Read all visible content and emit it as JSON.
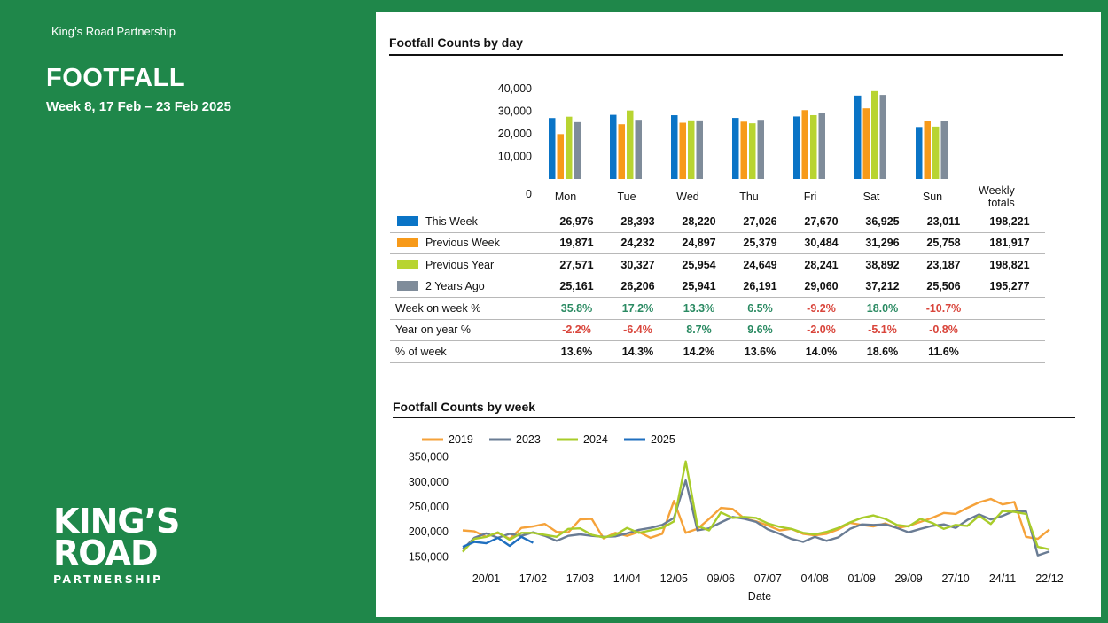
{
  "header": {
    "org": "King’s Road Partnership",
    "title": "FOOTFALL",
    "subtitle": "Week 8, 17 Feb – 23 Feb 2025"
  },
  "logo": {
    "line1": "KING’S",
    "line2": "ROAD",
    "line3": "PARTNERSHIP"
  },
  "colors": {
    "background": "#1f874a",
    "this_week": "#0a74c6",
    "previous_week": "#f79a1a",
    "previous_year": "#b8d431",
    "two_years_ago": "#7f8c9a"
  },
  "day_section": {
    "title": "Footfall Counts by day",
    "weekly_totals_label": [
      "Weekly",
      "totals"
    ]
  },
  "week_section": {
    "title": "Footfall Counts by week"
  },
  "chart_data": [
    {
      "type": "bar",
      "title": "Footfall Counts by day",
      "categories": [
        "Mon",
        "Tue",
        "Wed",
        "Thu",
        "Fri",
        "Sat",
        "Sun"
      ],
      "y_ticks": [
        "0",
        "10,000",
        "20,000",
        "30,000",
        "40,000"
      ],
      "ylim": [
        0,
        40000
      ],
      "series": [
        {
          "name": "This Week",
          "color": "#0a74c6",
          "values": [
            26976,
            28393,
            28220,
            27026,
            27670,
            36925,
            23011
          ],
          "labels": [
            "26,976",
            "28,393",
            "28,220",
            "27,026",
            "27,670",
            "36,925",
            "23,011"
          ],
          "total": "198,221"
        },
        {
          "name": "Previous Week",
          "color": "#f79a1a",
          "values": [
            19871,
            24232,
            24897,
            25379,
            30484,
            31296,
            25758
          ],
          "labels": [
            "19,871",
            "24,232",
            "24,897",
            "25,379",
            "30,484",
            "31,296",
            "25,758"
          ],
          "total": "181,917"
        },
        {
          "name": "Previous Year",
          "color": "#b8d431",
          "values": [
            27571,
            30327,
            25954,
            24649,
            28241,
            38892,
            23187
          ],
          "labels": [
            "27,571",
            "30,327",
            "25,954",
            "24,649",
            "28,241",
            "38,892",
            "23,187"
          ],
          "total": "198,821"
        },
        {
          "name": "2 Years Ago",
          "color": "#7f8c9a",
          "values": [
            25161,
            26206,
            25941,
            26191,
            29060,
            37212,
            25506
          ],
          "labels": [
            "25,161",
            "26,206",
            "25,941",
            "26,191",
            "29,060",
            "37,212",
            "25,506"
          ],
          "total": "195,277"
        }
      ],
      "metrics": [
        {
          "name": "Week on week %",
          "values": [
            "35.8%",
            "17.2%",
            "13.3%",
            "6.5%",
            "-9.2%",
            "18.0%",
            "-10.7%"
          ]
        },
        {
          "name": "Year on year %",
          "values": [
            "-2.2%",
            "-6.4%",
            "8.7%",
            "9.6%",
            "-2.0%",
            "-5.1%",
            "-0.8%"
          ]
        },
        {
          "name": "% of week",
          "values": [
            "13.6%",
            "14.3%",
            "14.2%",
            "13.6%",
            "14.0%",
            "18.6%",
            "11.6%"
          ]
        }
      ]
    },
    {
      "type": "line",
      "title": "Footfall Counts by week",
      "xlabel": "Date",
      "ylim": [
        140000,
        360000
      ],
      "y_ticks": [
        {
          "value": 150000,
          "label": "150,000"
        },
        {
          "value": 200000,
          "label": "200,000"
        },
        {
          "value": 250000,
          "label": "250,000"
        },
        {
          "value": 300000,
          "label": "300,000"
        },
        {
          "value": 350000,
          "label": "350,000"
        }
      ],
      "x_ticks": [
        {
          "week": 3,
          "label": "20/01"
        },
        {
          "week": 7,
          "label": "17/02"
        },
        {
          "week": 11,
          "label": "17/03"
        },
        {
          "week": 15,
          "label": "14/04"
        },
        {
          "week": 19,
          "label": "12/05"
        },
        {
          "week": 23,
          "label": "09/06"
        },
        {
          "week": 27,
          "label": "07/07"
        },
        {
          "week": 31,
          "label": "04/08"
        },
        {
          "week": 35,
          "label": "01/09"
        },
        {
          "week": 39,
          "label": "29/09"
        },
        {
          "week": 43,
          "label": "27/10"
        },
        {
          "week": 47,
          "label": "24/11"
        },
        {
          "week": 51,
          "label": "22/12"
        }
      ],
      "legend": [
        "2019",
        "2023",
        "2024",
        "2025"
      ],
      "series": [
        {
          "name": "2019",
          "color": "#f5a23a",
          "values": [
            203000,
            201000,
            190000,
            198000,
            186000,
            208000,
            211000,
            216000,
            200000,
            199000,
            225000,
            226000,
            187000,
            198000,
            192000,
            200000,
            188000,
            196000,
            262000,
            198000,
            206000,
            226000,
            248000,
            246000,
            227000,
            221000,
            213000,
            203000,
            206000,
            196000,
            193000,
            196000,
            205000,
            218000,
            214000,
            211000,
            217000,
            208000,
            212000,
            220000,
            228000,
            238000,
            236000,
            248000,
            259000,
            266000,
            255000,
            260000,
            190000,
            186000,
            205000
          ]
        },
        {
          "name": "2023",
          "color": "#6a7c94",
          "values": [
            165000,
            188000,
            197000,
            188000,
            196000,
            192000,
            199000,
            192000,
            182000,
            192000,
            195000,
            192000,
            190000,
            191000,
            197000,
            204000,
            208000,
            214000,
            228000,
            303000,
            203000,
            207000,
            219000,
            230000,
            226000,
            220000,
            205000,
            196000,
            186000,
            180000,
            190000,
            182000,
            189000,
            206000,
            215000,
            214000,
            215000,
            208000,
            199000,
            206000,
            212000,
            215000,
            208000,
            224000,
            235000,
            225000,
            232000,
            242000,
            241000,
            153000,
            161000
          ]
        },
        {
          "name": "2024",
          "color": "#a8cc2a",
          "values": [
            160000,
            186000,
            190000,
            199000,
            184000,
            198000,
            198000,
            194000,
            190000,
            206000,
            207000,
            194000,
            189000,
            194000,
            208000,
            198000,
            203000,
            208000,
            221000,
            341000,
            212000,
            203000,
            239000,
            228000,
            230000,
            228000,
            217000,
            210000,
            206000,
            198000,
            195000,
            200000,
            208000,
            219000,
            228000,
            233000,
            226000,
            214000,
            211000,
            226000,
            218000,
            206000,
            214000,
            212000,
            232000,
            216000,
            242000,
            240000,
            236000,
            170000,
            165000
          ]
        },
        {
          "name": "2025",
          "color": "#1f6fbf",
          "values": [
            170000,
            180000,
            177000,
            188000,
            172000,
            190000,
            178000
          ]
        }
      ]
    }
  ]
}
